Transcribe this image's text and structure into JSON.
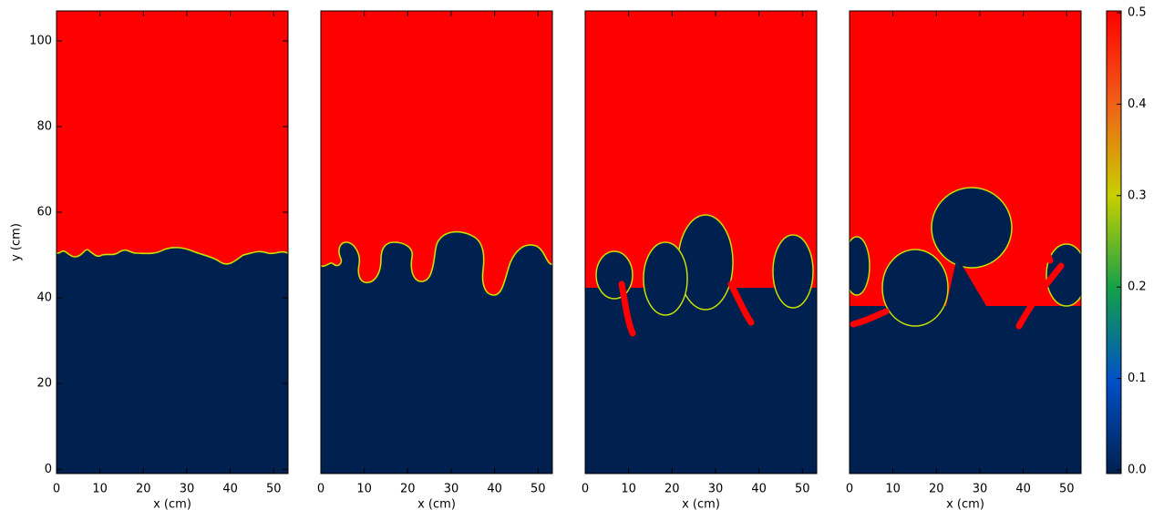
{
  "chart_data": [
    {
      "type": "heatmap",
      "xlabel": "x (cm)",
      "ylabel": "y (cm)",
      "xlim": [
        0,
        53.3
      ],
      "ylim": [
        -1,
        107
      ],
      "xticks": [
        0,
        10,
        20,
        30,
        40,
        50
      ],
      "yticks": [
        0,
        20,
        40,
        60,
        80,
        100
      ]
    },
    {
      "type": "heatmap",
      "xlabel": "x (cm)",
      "xlim": [
        0,
        53.3
      ],
      "ylim": [
        -1,
        107
      ],
      "xticks": [
        0,
        10,
        20,
        30,
        40,
        50
      ]
    },
    {
      "type": "heatmap",
      "xlabel": "x (cm)",
      "xlim": [
        0,
        53.3
      ],
      "ylim": [
        -1,
        107
      ],
      "xticks": [
        0,
        10,
        20,
        30,
        40,
        50
      ]
    },
    {
      "type": "heatmap",
      "xlabel": "x (cm)",
      "xlim": [
        0,
        53.3
      ],
      "ylim": [
        -1,
        107
      ],
      "xticks": [
        0,
        10,
        20,
        30,
        40,
        50
      ]
    },
    {
      "type": "colorbar",
      "ylim": [
        0,
        0.5
      ],
      "yticks": [
        {
          "value": 0,
          "label": "0.0"
        },
        {
          "value": 0.1,
          "label": "0.1"
        },
        {
          "value": 0.2,
          "label": "0.2"
        },
        {
          "value": 0.3,
          "label": "0.3"
        },
        {
          "value": 0.4,
          "label": "0.4"
        },
        {
          "value": 0.5,
          "label": "0.5"
        }
      ]
    }
  ]
}
